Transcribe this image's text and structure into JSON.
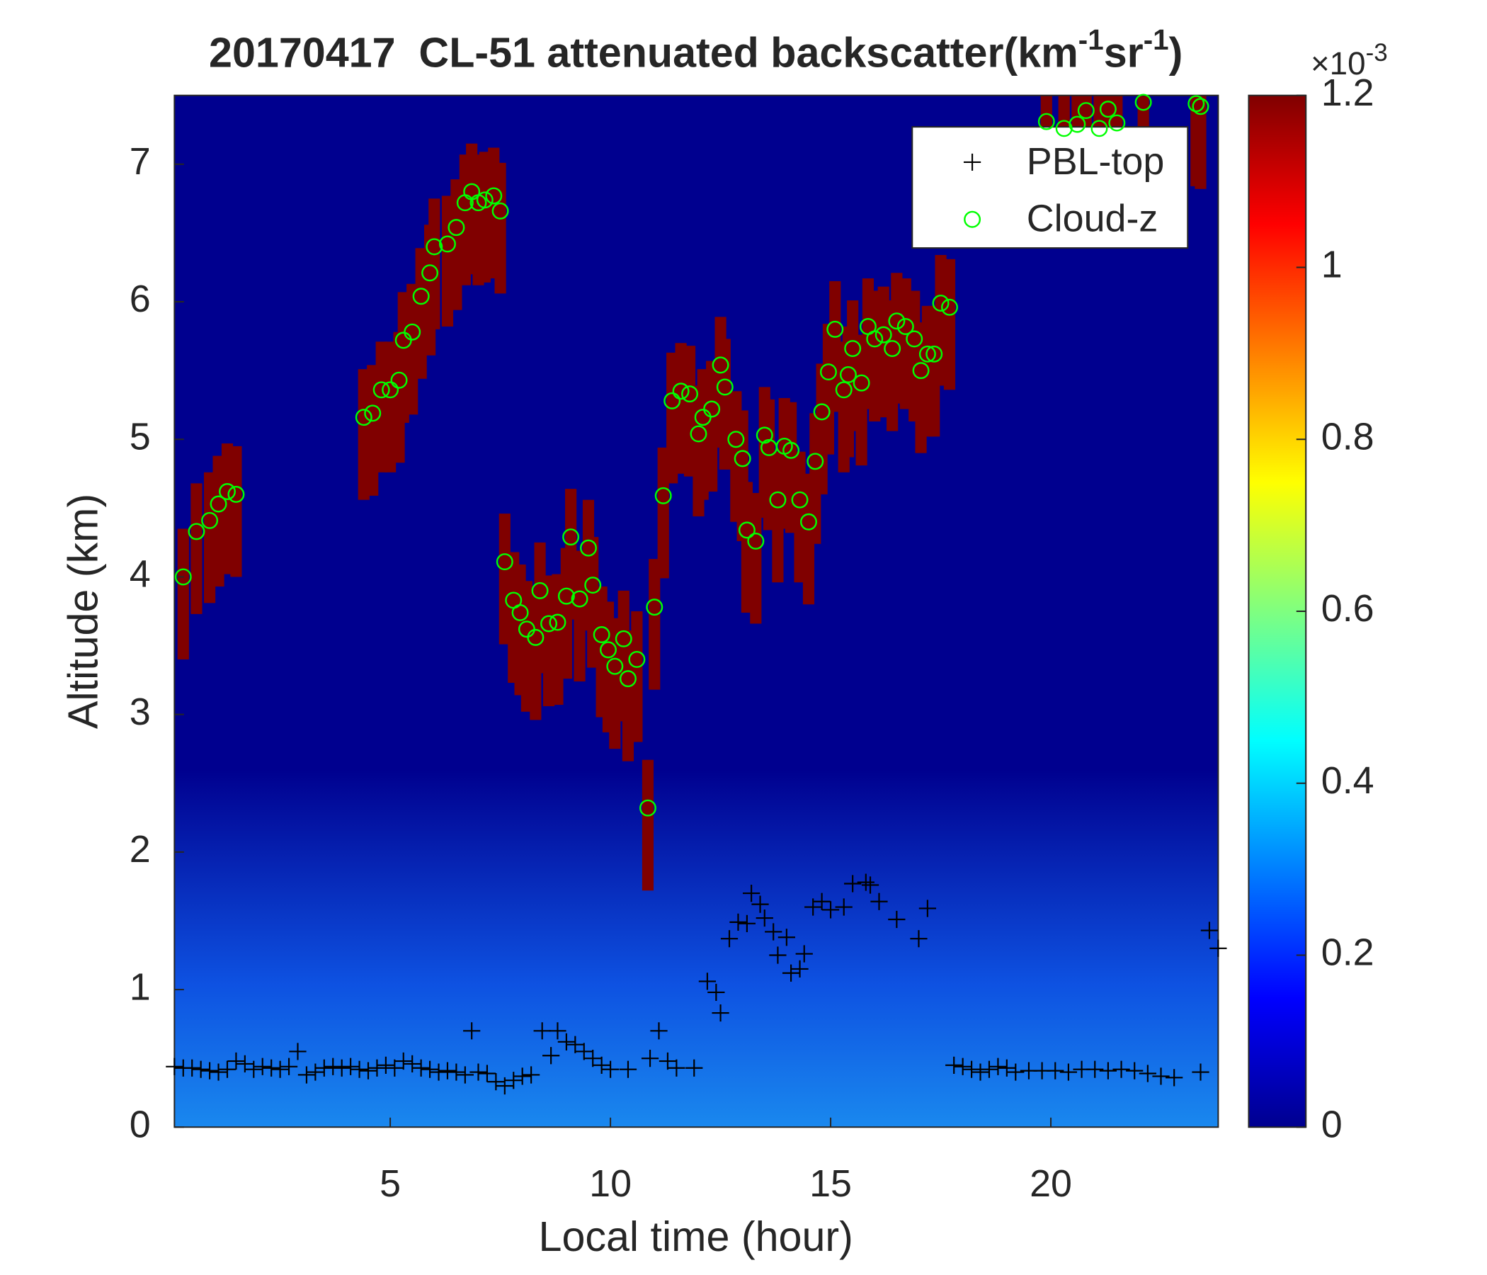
{
  "chart_data": {
    "type": "scatter",
    "title_parts": [
      "20170417  CL-51 attenuated backscatter(km",
      "-1",
      "sr",
      "-1",
      ")"
    ],
    "xlabel": "Local time (hour)",
    "ylabel": "Altitude (km)",
    "xlim": [
      0.1,
      23.8
    ],
    "ylim": [
      0,
      7.5
    ],
    "xticks": [
      5,
      10,
      15,
      20
    ],
    "yticks": [
      0,
      1,
      2,
      3,
      4,
      5,
      6,
      7
    ],
    "legend": "upper right",
    "colorbar": {
      "clim": [
        0,
        1.2
      ],
      "ticks": [
        0,
        0.2,
        0.4,
        0.6,
        0.8,
        1,
        1.2
      ],
      "multiplier": [
        "×10",
        "-3"
      ]
    },
    "series": [
      {
        "name": "PBL-top",
        "marker": "plus",
        "color": "#000000",
        "x": [
          0.1,
          0.3,
          0.5,
          0.7,
          0.9,
          1.1,
          1.3,
          1.5,
          1.7,
          1.9,
          2.1,
          2.3,
          2.5,
          2.7,
          2.9,
          3.1,
          3.3,
          3.5,
          3.7,
          3.9,
          4.1,
          4.3,
          4.5,
          4.7,
          4.9,
          5.1,
          5.3,
          5.5,
          5.7,
          5.9,
          6.1,
          6.3,
          6.5,
          6.7,
          6.85,
          7.0,
          7.2,
          7.4,
          7.6,
          7.8,
          8.0,
          8.2,
          8.45,
          8.65,
          8.8,
          9.0,
          9.2,
          9.4,
          9.6,
          9.8,
          10.0,
          10.4,
          10.9,
          11.1,
          11.3,
          11.5,
          11.9,
          12.2,
          12.4,
          12.5,
          12.7,
          12.9,
          13.1,
          13.2,
          13.4,
          13.5,
          13.7,
          13.8,
          14.0,
          14.1,
          14.3,
          14.4,
          14.6,
          14.8,
          15.0,
          15.3,
          15.5,
          15.8,
          15.9,
          16.1,
          16.5,
          17.0,
          17.2,
          17.8,
          18.0,
          18.2,
          18.4,
          18.6,
          18.8,
          19.0,
          19.2,
          19.5,
          19.8,
          20.1,
          20.4,
          20.7,
          21.0,
          21.3,
          21.6,
          21.9,
          22.2,
          22.5,
          22.8,
          23.4,
          23.6,
          23.8
        ],
        "values": [
          0.44,
          0.43,
          0.43,
          0.42,
          0.41,
          0.4,
          0.42,
          0.48,
          0.46,
          0.42,
          0.44,
          0.43,
          0.42,
          0.44,
          0.55,
          0.38,
          0.4,
          0.43,
          0.44,
          0.43,
          0.44,
          0.42,
          0.41,
          0.43,
          0.45,
          0.43,
          0.48,
          0.46,
          0.43,
          0.42,
          0.4,
          0.41,
          0.4,
          0.38,
          0.7,
          0.4,
          0.39,
          0.33,
          0.3,
          0.34,
          0.37,
          0.38,
          0.7,
          0.52,
          0.7,
          0.62,
          0.6,
          0.55,
          0.5,
          0.45,
          0.42,
          0.42,
          0.5,
          0.7,
          0.48,
          0.43,
          0.43,
          1.06,
          0.98,
          0.83,
          1.37,
          1.49,
          1.48,
          1.7,
          1.62,
          1.52,
          1.42,
          1.25,
          1.38,
          1.12,
          1.15,
          1.26,
          1.6,
          1.64,
          1.58,
          1.6,
          1.77,
          1.78,
          1.76,
          1.64,
          1.51,
          1.37,
          1.59,
          0.45,
          0.44,
          0.42,
          0.4,
          0.42,
          0.44,
          0.43,
          0.4,
          0.41,
          0.41,
          0.41,
          0.4,
          0.42,
          0.42,
          0.41,
          0.42,
          0.41,
          0.39,
          0.37,
          0.36,
          0.4,
          1.43,
          1.3
        ]
      },
      {
        "name": "Cloud-z",
        "marker": "circle",
        "color": "#00ff00",
        "x": [
          0.3,
          0.6,
          0.9,
          1.1,
          1.3,
          1.5,
          4.4,
          4.6,
          4.8,
          5.0,
          5.2,
          5.3,
          5.5,
          5.7,
          5.9,
          6.0,
          6.3,
          6.5,
          6.7,
          6.85,
          7.0,
          7.15,
          7.35,
          7.5,
          7.6,
          7.8,
          7.95,
          8.1,
          8.3,
          8.4,
          8.6,
          8.8,
          9.0,
          9.1,
          9.3,
          9.5,
          9.6,
          9.8,
          9.95,
          10.1,
          10.3,
          10.4,
          10.6,
          10.85,
          11.0,
          11.2,
          11.4,
          11.6,
          11.8,
          12.0,
          12.1,
          12.3,
          12.5,
          12.6,
          12.85,
          13.0,
          13.1,
          13.3,
          13.5,
          13.6,
          13.8,
          13.95,
          14.1,
          14.3,
          14.5,
          14.65,
          14.8,
          14.95,
          15.1,
          15.3,
          15.4,
          15.5,
          15.7,
          15.85,
          16.0,
          16.2,
          16.4,
          16.5,
          16.7,
          16.9,
          17.05,
          17.2,
          17.35,
          17.5,
          17.7,
          19.9,
          20.3,
          20.6,
          20.8,
          21.1,
          21.3,
          21.5,
          22.1,
          23.3,
          23.4
        ],
        "values": [
          4.0,
          4.33,
          4.41,
          4.53,
          4.62,
          4.6,
          5.16,
          5.19,
          5.36,
          5.36,
          5.43,
          5.72,
          5.78,
          6.04,
          6.21,
          6.4,
          6.42,
          6.54,
          6.72,
          6.8,
          6.72,
          6.74,
          6.77,
          6.66,
          4.11,
          3.83,
          3.74,
          3.62,
          3.56,
          3.9,
          3.66,
          3.67,
          3.86,
          4.29,
          3.84,
          4.21,
          3.94,
          3.58,
          3.47,
          3.35,
          3.55,
          3.26,
          3.4,
          2.32,
          3.78,
          4.59,
          5.28,
          5.35,
          5.33,
          5.04,
          5.16,
          5.22,
          5.54,
          5.38,
          5.0,
          4.86,
          4.34,
          4.26,
          5.03,
          4.94,
          4.56,
          4.95,
          4.92,
          4.56,
          4.4,
          4.84,
          5.2,
          5.49,
          5.8,
          5.36,
          5.47,
          5.66,
          5.41,
          5.82,
          5.73,
          5.76,
          5.66,
          5.86,
          5.82,
          5.73,
          5.5,
          5.62,
          5.62,
          5.99,
          5.96,
          7.31,
          7.26,
          7.29,
          7.39,
          7.26,
          7.4,
          7.3,
          7.45,
          7.44,
          7.42
        ]
      }
    ]
  }
}
